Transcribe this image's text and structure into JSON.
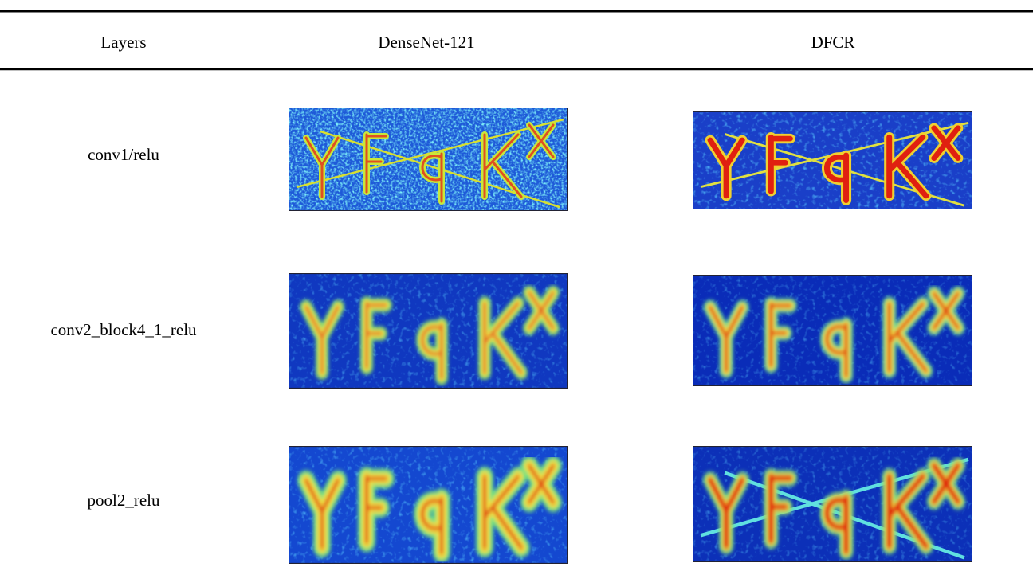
{
  "table": {
    "header": [
      "Layers",
      "DenseNet-121",
      "DFCR"
    ],
    "rows": [
      [
        "conv1/relu"
      ],
      [
        "conv2_block4_1_relu"
      ],
      [
        "pool2_relu"
      ]
    ]
  }
}
